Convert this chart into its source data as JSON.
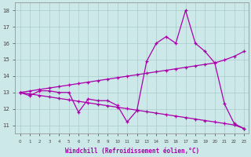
{
  "xlabel": "Windchill (Refroidissement éolien,°C)",
  "x_values": [
    0,
    1,
    2,
    3,
    4,
    5,
    6,
    7,
    8,
    9,
    10,
    11,
    12,
    13,
    14,
    15,
    16,
    17,
    18,
    19,
    20,
    21,
    22,
    23
  ],
  "line_zigzag": [
    13.0,
    12.8,
    13.1,
    13.1,
    13.0,
    13.0,
    11.8,
    12.6,
    12.5,
    12.5,
    12.2,
    11.2,
    11.9,
    14.9,
    16.0,
    16.4,
    16.0,
    18.0,
    16.0,
    15.5,
    14.8,
    12.3,
    11.1,
    10.8
  ],
  "line_up": [
    13.0,
    13.09,
    13.18,
    13.27,
    13.36,
    13.45,
    13.54,
    13.63,
    13.72,
    13.81,
    13.9,
    13.99,
    14.08,
    14.17,
    14.26,
    14.35,
    14.44,
    14.53,
    14.62,
    14.71,
    14.8,
    14.98,
    15.2,
    15.5
  ],
  "line_down": [
    13.0,
    12.91,
    12.82,
    12.73,
    12.64,
    12.55,
    12.46,
    12.37,
    12.28,
    12.19,
    12.1,
    12.01,
    11.92,
    11.83,
    11.74,
    11.65,
    11.56,
    11.47,
    11.38,
    11.29,
    11.2,
    11.11,
    11.02,
    10.8
  ],
  "line_color": "#aa00aa",
  "bg_color": "#cce8e8",
  "grid_color": "#aacccc",
  "ylim": [
    10.5,
    18.5
  ],
  "yticks": [
    11,
    12,
    13,
    14,
    15,
    16,
    17,
    18
  ],
  "xlim": [
    -0.5,
    23.5
  ]
}
